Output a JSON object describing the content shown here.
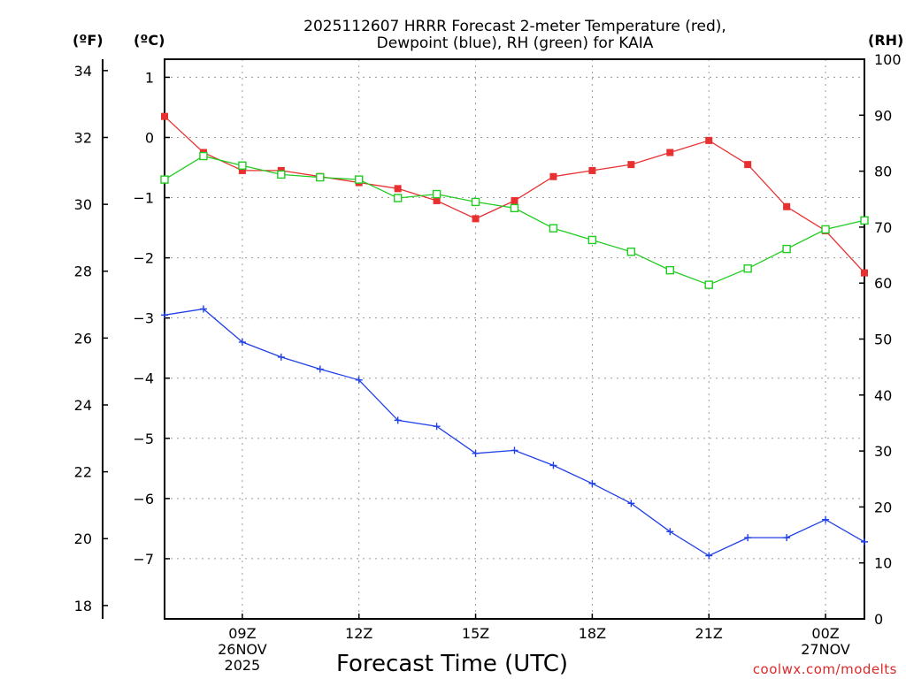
{
  "chart_data": {
    "type": "line",
    "title_lines": [
      "2025112607 HRRR Forecast 2-meter Temperature (red),",
      "Dewpoint (blue), RH (green) for KAIA"
    ],
    "xlabel": "Forecast Time (UTC)",
    "source_label": "coolwx.com/modelts",
    "unit_labels": {
      "fahrenheit": "(ºF)",
      "celsius": "(ºC)",
      "rh": "(RH)"
    },
    "x_hours": [
      7,
      8,
      9,
      10,
      11,
      12,
      13,
      14,
      15,
      16,
      17,
      18,
      19,
      20,
      21,
      22,
      23,
      24,
      25
    ],
    "xlim": [
      7,
      25
    ],
    "x_ticks": [
      {
        "hour": 9,
        "lines": [
          "09Z",
          "26NOV",
          "2025"
        ]
      },
      {
        "hour": 12,
        "lines": [
          "12Z"
        ]
      },
      {
        "hour": 15,
        "lines": [
          "15Z"
        ]
      },
      {
        "hour": 18,
        "lines": [
          "18Z"
        ]
      },
      {
        "hour": 21,
        "lines": [
          "21Z"
        ]
      },
      {
        "hour": 24,
        "lines": [
          "00Z",
          "27NOV"
        ]
      }
    ],
    "celsius_axis": {
      "ylim": [
        -8.0,
        1.3
      ],
      "ticks": [
        1,
        0,
        -1,
        -2,
        -3,
        -4,
        -5,
        -6,
        -7
      ]
    },
    "fahrenheit_axis": {
      "ylim": [
        17.6,
        34.34
      ],
      "ticks": [
        34,
        32,
        30,
        28,
        26,
        24,
        22,
        20,
        18
      ]
    },
    "rh_axis": {
      "ylim": [
        0,
        100
      ],
      "ticks": [
        100,
        90,
        80,
        70,
        60,
        50,
        40,
        30,
        20,
        10,
        0
      ]
    },
    "series": [
      {
        "name": "Temperature",
        "axis": "celsius",
        "color": "#e83030",
        "marker": "filled-square",
        "values": [
          0.35,
          -0.25,
          -0.55,
          -0.55,
          -0.65,
          -0.75,
          -0.85,
          -1.05,
          -1.35,
          -1.05,
          -0.65,
          -0.55,
          -0.45,
          -0.25,
          -0.05,
          -0.45,
          -1.15,
          -1.55,
          -2.25
        ]
      },
      {
        "name": "Dewpoint",
        "axis": "celsius",
        "color": "#2040e8",
        "marker": "plus",
        "values": [
          -2.95,
          -2.85,
          -3.4,
          -3.65,
          -3.85,
          -4.03,
          -4.7,
          -4.8,
          -5.25,
          -5.2,
          -5.45,
          -5.75,
          -6.08,
          -6.55,
          -6.95,
          -6.65,
          -6.65,
          -6.35,
          -6.72
        ]
      },
      {
        "name": "RH",
        "axis": "rh",
        "color": "#20cc20",
        "marker": "open-square",
        "values": [
          78.5,
          82.7,
          81.0,
          79.4,
          78.9,
          78.5,
          75.2,
          75.9,
          74.5,
          73.4,
          69.8,
          67.7,
          65.6,
          62.3,
          59.7,
          62.6,
          66.1,
          69.6,
          71.2
        ]
      }
    ]
  }
}
